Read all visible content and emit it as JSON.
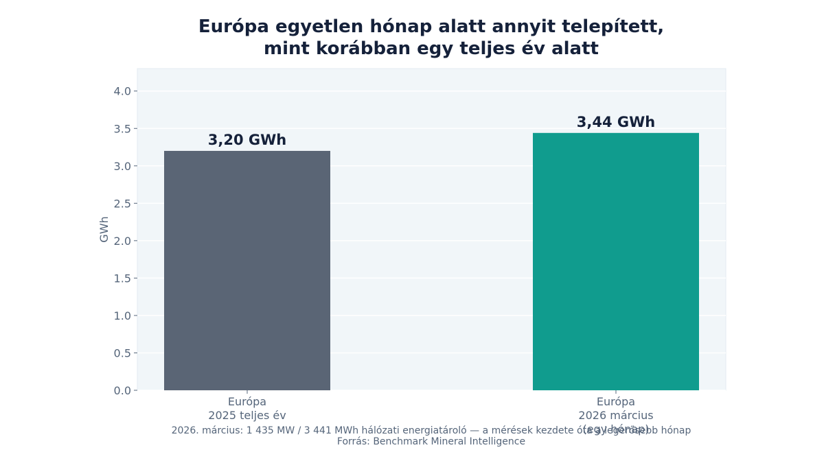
{
  "chart_data": {
    "type": "bar",
    "title_lines": [
      "Európa egyetlen hónap alatt annyit telepített,",
      "mint korábban egy teljes év alatt"
    ],
    "ylabel": "GWh",
    "xlabel": "",
    "ylim": [
      0,
      4.3
    ],
    "yticks": [
      "0.0",
      "0.5",
      "1.0",
      "1.5",
      "2.0",
      "2.5",
      "3.0",
      "3.5",
      "4.0"
    ],
    "grid": true,
    "categories": [
      [
        "Európa",
        "2025 teljes év"
      ],
      [
        "Európa",
        "2026 március",
        "(egy hónap)"
      ]
    ],
    "values": [
      3.2,
      3.44
    ],
    "data_labels": [
      "3,20 GWh",
      "3,44 GWh"
    ],
    "colors": [
      "#5a6575",
      "#109c8e"
    ]
  },
  "footer": {
    "note": "2026. március: 1 435 MW / 3 441 MWh hálózati energiatároló — a mérések kezdete óta a legerősebb hónap",
    "source": "Forrás: Benchmark Mineral Intelligence"
  },
  "style": {
    "plot_bg": "#f1f6f9",
    "grid_color": "#ffffff",
    "text_color": "#15213a",
    "muted_color": "#55657a"
  }
}
